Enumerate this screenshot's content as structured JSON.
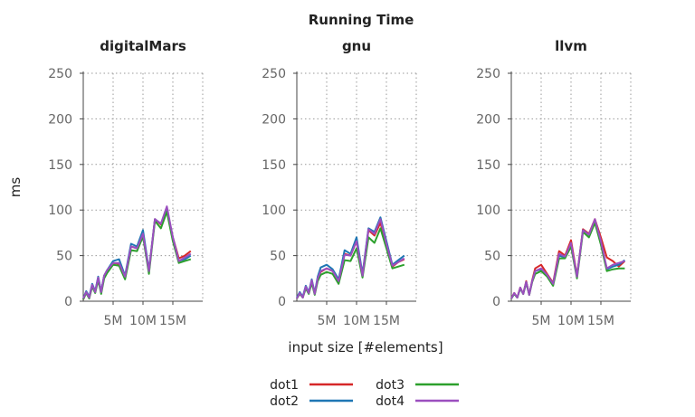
{
  "chart_data": {
    "type": "line",
    "title": "Running Time",
    "xlabel": "input size [#elements]",
    "ylabel": "ms",
    "ylim": [
      0,
      250
    ],
    "yticks": [
      0,
      50,
      100,
      150,
      200,
      250
    ],
    "xlim": [
      0,
      20000000
    ],
    "xticks": [
      {
        "value": 5000000,
        "label": "5M"
      },
      {
        "value": 10000000,
        "label": "10M"
      },
      {
        "value": 15000000,
        "label": "15M"
      }
    ],
    "grid": true,
    "legend_position": "bottom-center",
    "colors": {
      "dot1": "#d62728",
      "dot2": "#1f77b4",
      "dot3": "#2ca02c",
      "dot4": "#9b4fbf"
    },
    "x": [
      0,
      500000,
      1000000,
      1500000,
      2000000,
      2500000,
      3000000,
      3500000,
      4000000,
      5000000,
      6000000,
      7000000,
      8000000,
      9000000,
      10000000,
      11000000,
      12000000,
      13000000,
      14000000,
      15000000,
      16000000,
      17000000,
      18000000,
      19000000,
      20000000
    ],
    "panels": [
      {
        "name": "digitalMars",
        "series": [
          {
            "name": "dot1",
            "values": [
              2,
              10,
              4,
              18,
              10,
              26,
              10,
              28,
              34,
              42,
              41,
              27,
              60,
              58,
              75,
              33,
              90,
              84,
              100,
              70,
              47,
              50,
              55,
              null,
              null
            ]
          },
          {
            "name": "dot2",
            "values": [
              3,
              11,
              5,
              19,
              11,
              27,
              11,
              28,
              34,
              44,
              46,
              28,
              63,
              60,
              78,
              34,
              90,
              85,
              101,
              70,
              44,
              46,
              50,
              null,
              null
            ]
          },
          {
            "name": "dot3",
            "values": [
              2,
              9,
              3,
              16,
              9,
              23,
              8,
              25,
              31,
              40,
              39,
              24,
              56,
              55,
              71,
              30,
              88,
              80,
              98,
              66,
              42,
              44,
              46,
              null,
              null
            ]
          },
          {
            "name": "dot4",
            "values": [
              3,
              10,
              4,
              18,
              10,
              26,
              10,
              28,
              34,
              42,
              42,
              27,
              60,
              58,
              74,
              33,
              90,
              85,
              104,
              70,
              44,
              48,
              52,
              null,
              null
            ]
          }
        ]
      },
      {
        "name": "gnu",
        "series": [
          {
            "name": "dot1",
            "values": [
              3,
              9,
              4,
              16,
              9,
              22,
              8,
              25,
              32,
              36,
              33,
              22,
              52,
              50,
              66,
              28,
              78,
              72,
              86,
              62,
              38,
              43,
              46,
              null,
              null
            ]
          },
          {
            "name": "dot2",
            "values": [
              4,
              10,
              5,
              17,
              10,
              24,
              9,
              27,
              37,
              40,
              35,
              24,
              56,
              52,
              70,
              30,
              80,
              76,
              92,
              66,
              40,
              45,
              50,
              null,
              null
            ]
          },
          {
            "name": "dot3",
            "values": [
              3,
              8,
              4,
              14,
              8,
              20,
              7,
              22,
              29,
              32,
              30,
              19,
              45,
              44,
              58,
              26,
              70,
              64,
              80,
              58,
              36,
              38,
              40,
              null,
              null
            ]
          },
          {
            "name": "dot4",
            "values": [
              3,
              9,
              4,
              16,
              9,
              23,
              8,
              25,
              33,
              36,
              33,
              22,
              51,
              50,
              66,
              28,
              79,
              74,
              90,
              63,
              39,
              43,
              47,
              null,
              null
            ]
          }
        ]
      },
      {
        "name": "llvm",
        "series": [
          {
            "name": "dot1",
            "values": [
              3,
              9,
              4,
              15,
              8,
              22,
              7,
              23,
              36,
              40,
              30,
              20,
              55,
              50,
              67,
              28,
              79,
              74,
              90,
              70,
              48,
              44,
              38,
              44,
              null
            ]
          },
          {
            "name": "dot2",
            "values": [
              3,
              8,
              4,
              14,
              8,
              21,
              7,
              22,
              33,
              35,
              28,
              19,
              50,
              48,
              62,
              27,
              78,
              73,
              88,
              64,
              35,
              38,
              40,
              45,
              null
            ]
          },
          {
            "name": "dot3",
            "values": [
              3,
              8,
              4,
              14,
              8,
              20,
              7,
              21,
              30,
              33,
              27,
              17,
              47,
              47,
              60,
              25,
              76,
              70,
              86,
              62,
              33,
              35,
              36,
              36,
              null
            ]
          },
          {
            "name": "dot4",
            "values": [
              3,
              9,
              4,
              15,
              8,
              21,
              7,
              22,
              33,
              36,
              29,
              19,
              52,
              49,
              64,
              27,
              78,
              73,
              90,
              66,
              36,
              40,
              42,
              44,
              null
            ]
          }
        ]
      }
    ]
  }
}
